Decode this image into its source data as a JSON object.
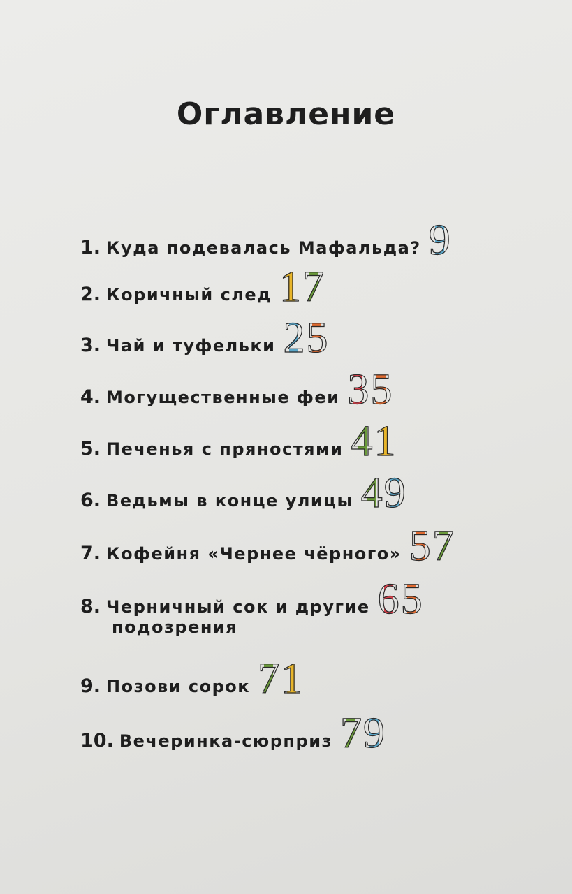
{
  "title": "Оглавление",
  "colors": {
    "blue": "#5aa6c8",
    "yellow": "#e8b52a",
    "green": "#6a9a3a",
    "orange": "#e06a30",
    "red": "#d8404a"
  },
  "items": [
    {
      "num": "1.",
      "label": "Куда подевалась Мафальда?",
      "page": "9",
      "digit_colors": [
        "blue"
      ]
    },
    {
      "num": "2.",
      "label": "Коричный след",
      "page": "17",
      "digit_colors": [
        "yellow",
        "green"
      ]
    },
    {
      "num": "3.",
      "label": "Чай и туфельки",
      "page": "25",
      "digit_colors": [
        "blue",
        "orange"
      ]
    },
    {
      "num": "4.",
      "label": "Могущественные феи",
      "page": "35",
      "digit_colors": [
        "red",
        "orange"
      ]
    },
    {
      "num": "5.",
      "label": "Печенья с пряностями",
      "page": "41",
      "digit_colors": [
        "green",
        "yellow"
      ]
    },
    {
      "num": "6.",
      "label": "Ведьмы в конце улицы",
      "page": "49",
      "digit_colors": [
        "green",
        "blue"
      ]
    },
    {
      "num": "7.",
      "label": "Кофейня «Чернее чёрного»",
      "page": "57",
      "digit_colors": [
        "orange",
        "green"
      ]
    },
    {
      "num": "8.",
      "label": "Черничный сок и другие",
      "label_line2": "подозрения",
      "page": "65",
      "digit_colors": [
        "red",
        "orange"
      ]
    },
    {
      "num": "9.",
      "label": "Позови сорок",
      "page": "71",
      "digit_colors": [
        "green",
        "yellow"
      ]
    },
    {
      "num": "10.",
      "label": "Вечеринка-сюрприз",
      "page": "79",
      "digit_colors": [
        "green",
        "blue"
      ]
    }
  ]
}
